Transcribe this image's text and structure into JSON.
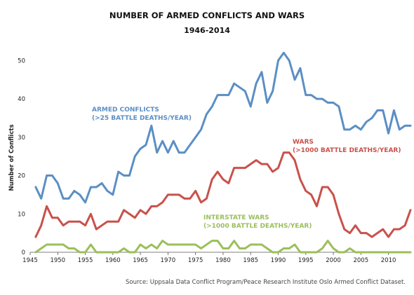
{
  "chart_data": {
    "type": "line",
    "title": "NUMBER OF ARMED CONFLICTS AND WARS",
    "subtitle": "1946-2014",
    "ylabel": "Number of Conflicts",
    "xlabel": "",
    "xlim": [
      1945,
      2014
    ],
    "ylim": [
      0,
      55
    ],
    "x_ticks": [
      "1945",
      "1950",
      "1955",
      "1960",
      "1965",
      "1970",
      "1975",
      "1980",
      "1985",
      "1990",
      "1995",
      "2000",
      "2005",
      "2010"
    ],
    "y_ticks": [
      "0",
      "10",
      "20",
      "30",
      "40",
      "50"
    ],
    "grid": false,
    "x": [
      1946,
      1947,
      1948,
      1949,
      1950,
      1951,
      1952,
      1953,
      1954,
      1955,
      1956,
      1957,
      1958,
      1959,
      1960,
      1961,
      1962,
      1963,
      1964,
      1965,
      1966,
      1967,
      1968,
      1969,
      1970,
      1971,
      1972,
      1973,
      1974,
      1975,
      1976,
      1977,
      1978,
      1979,
      1980,
      1981,
      1982,
      1983,
      1984,
      1985,
      1986,
      1987,
      1988,
      1989,
      1990,
      1991,
      1992,
      1993,
      1994,
      1995,
      1996,
      1997,
      1998,
      1999,
      2000,
      2001,
      2002,
      2003,
      2004,
      2005,
      2006,
      2007,
      2008,
      2009,
      2010,
      2011,
      2012,
      2013,
      2014
    ],
    "series": [
      {
        "key": "armed",
        "name_lines": [
          "ARMED CONFLICTS",
          "(>25 BATTLE DEATHS/YEAR)"
        ],
        "color": "#5b8fc4",
        "values": [
          17,
          14,
          20,
          20,
          18,
          14,
          14,
          16,
          15,
          13,
          17,
          17,
          18,
          16,
          15,
          21,
          20,
          20,
          25,
          27,
          28,
          33,
          26,
          29,
          26,
          29,
          26,
          26,
          28,
          30,
          32,
          36,
          38,
          41,
          41,
          41,
          44,
          43,
          42,
          38,
          44,
          47,
          39,
          42,
          50,
          52,
          50,
          45,
          48,
          41,
          41,
          40,
          40,
          39,
          39,
          38,
          32,
          32,
          33,
          32,
          34,
          35,
          37,
          37,
          31,
          37,
          32,
          33,
          33
        ]
      },
      {
        "key": "wars",
        "name_lines": [
          "WARS",
          "(>1000 BATTLE DEATHS/YEAR)"
        ],
        "color": "#c9514b",
        "values": [
          4,
          7,
          12,
          9,
          9,
          7,
          8,
          8,
          8,
          7,
          10,
          6,
          7,
          8,
          8,
          8,
          11,
          10,
          9,
          11,
          10,
          12,
          12,
          13,
          15,
          15,
          15,
          14,
          14,
          16,
          13,
          14,
          19,
          21,
          19,
          18,
          22,
          22,
          22,
          23,
          24,
          23,
          23,
          21,
          22,
          26,
          26,
          24,
          19,
          16,
          15,
          12,
          17,
          17,
          15,
          10,
          6,
          5,
          7,
          5,
          5,
          4,
          5,
          6,
          4,
          6,
          6,
          7,
          11
        ]
      },
      {
        "key": "interstate",
        "name_lines": [
          "INTERSTATE WARS",
          "(>1000 BATTLE DEATHS/YEAR)"
        ],
        "color": "#9bbf5a",
        "values": [
          0,
          1,
          2,
          2,
          2,
          2,
          1,
          1,
          0,
          0,
          2,
          0,
          0,
          0,
          0,
          0,
          1,
          0,
          0,
          2,
          1,
          2,
          1,
          3,
          2,
          2,
          2,
          2,
          2,
          2,
          1,
          2,
          3,
          3,
          1,
          1,
          3,
          1,
          1,
          2,
          2,
          2,
          1,
          0,
          0,
          1,
          1,
          2,
          0,
          0,
          0,
          0,
          1,
          3,
          1,
          0,
          0,
          1,
          0,
          0,
          0,
          0,
          0,
          0,
          0,
          0,
          0,
          0,
          0
        ]
      }
    ]
  },
  "source": "Source: Uppsala Data Conflict Program/Peace Research Institute Oslo Armed Conflict Dataset."
}
